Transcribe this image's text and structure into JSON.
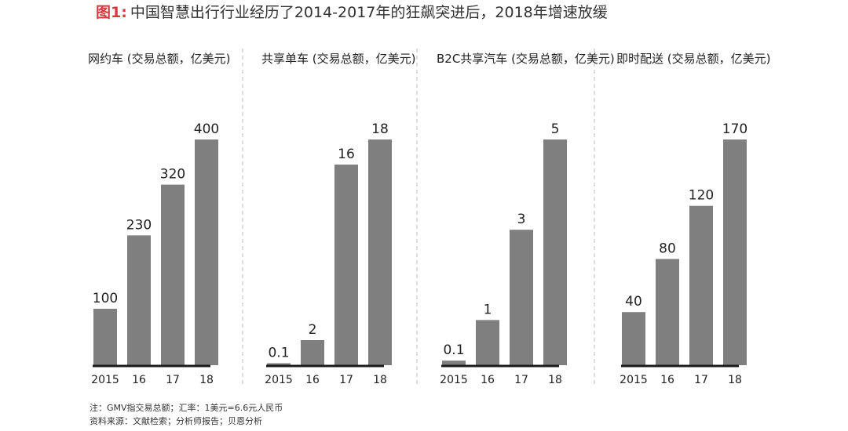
{
  "header": {
    "figure_label": "图1:",
    "title": "中国智慧出行行业经历了2014-2017年的狂飙突进后，2018年增速放缓"
  },
  "colors": {
    "bar": "#7f7f7f",
    "axis": "#1a1a1a",
    "divider": "#c8c8c8",
    "text": "#222222",
    "figure_label": "#d9363e"
  },
  "chart_data": [
    {
      "type": "bar",
      "title": "网约车 (交易总额，亿美元)",
      "categories": [
        "2015",
        "16",
        "17",
        "18"
      ],
      "values": [
        100,
        230,
        320,
        400
      ],
      "value_labels": [
        "100",
        "230",
        "320",
        "400"
      ],
      "xlabel": "",
      "ylabel": "",
      "grid": false
    },
    {
      "type": "bar",
      "title": "共享单车 (交易总额，亿美元)",
      "categories": [
        "2015",
        "16",
        "17",
        "18"
      ],
      "values": [
        0.1,
        2,
        16,
        18
      ],
      "value_labels": [
        "0.1",
        "2",
        "16",
        "18"
      ],
      "xlabel": "",
      "ylabel": "",
      "grid": false
    },
    {
      "type": "bar",
      "title": "B2C共享汽车 (交易总额，亿美元)",
      "categories": [
        "2015",
        "16",
        "17",
        "18"
      ],
      "values": [
        0.1,
        1,
        3,
        5
      ],
      "value_labels": [
        "0.1",
        "1",
        "3",
        "5"
      ],
      "xlabel": "",
      "ylabel": "",
      "grid": false
    },
    {
      "type": "bar",
      "title": "即时配送 (交易总额，亿美元)",
      "categories": [
        "2015",
        "16",
        "17",
        "18"
      ],
      "values": [
        40,
        80,
        120,
        170
      ],
      "value_labels": [
        "40",
        "80",
        "120",
        "170"
      ],
      "xlabel": "",
      "ylabel": "",
      "grid": false
    }
  ],
  "footnotes": {
    "note": "注：GMV指交易总额；汇率：1美元=6.6元人民币",
    "source": "资料来源：文献检索；分析师报告；贝恩分析"
  }
}
